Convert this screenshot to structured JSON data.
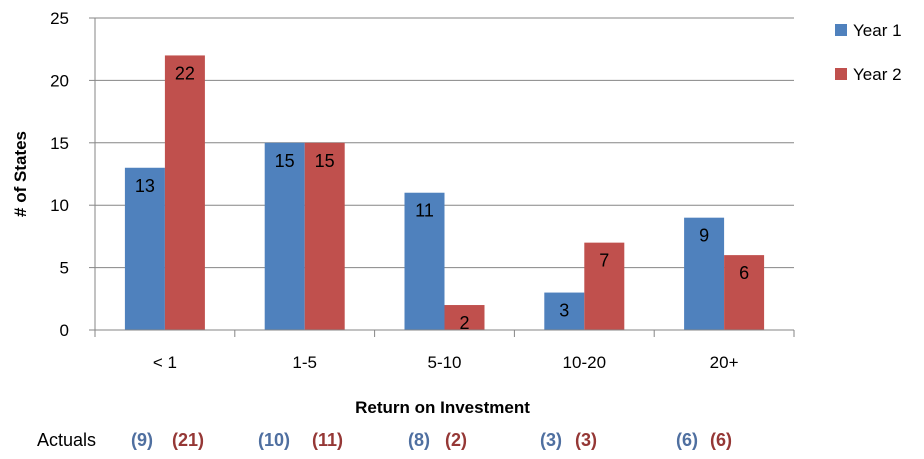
{
  "chart_data": {
    "type": "bar",
    "categories": [
      "< 1",
      "1-5",
      "5-10",
      "10-20",
      "20+"
    ],
    "series": [
      {
        "name": "Year 1",
        "values": [
          13,
          15,
          11,
          3,
          9
        ],
        "color": "#4F81BD"
      },
      {
        "name": "Year 2",
        "values": [
          22,
          15,
          2,
          7,
          6
        ],
        "color": "#C0504D"
      }
    ],
    "title": "",
    "xlabel": "Return on Investment",
    "ylabel": "# of States",
    "ylim": [
      0,
      25
    ],
    "yticks": [
      0,
      5,
      10,
      15,
      20,
      25
    ],
    "grid": true,
    "legend": "right",
    "data_labels": true
  },
  "actuals": {
    "label": "Actuals",
    "pairs": [
      [
        "(9)",
        "(21)"
      ],
      [
        "(10)",
        "(11)"
      ],
      [
        "(8)",
        "(2)"
      ],
      [
        "(3)",
        "(3)"
      ],
      [
        "(6)",
        "(6)"
      ]
    ],
    "colors": [
      "#4F6FA0",
      "#953735"
    ]
  }
}
